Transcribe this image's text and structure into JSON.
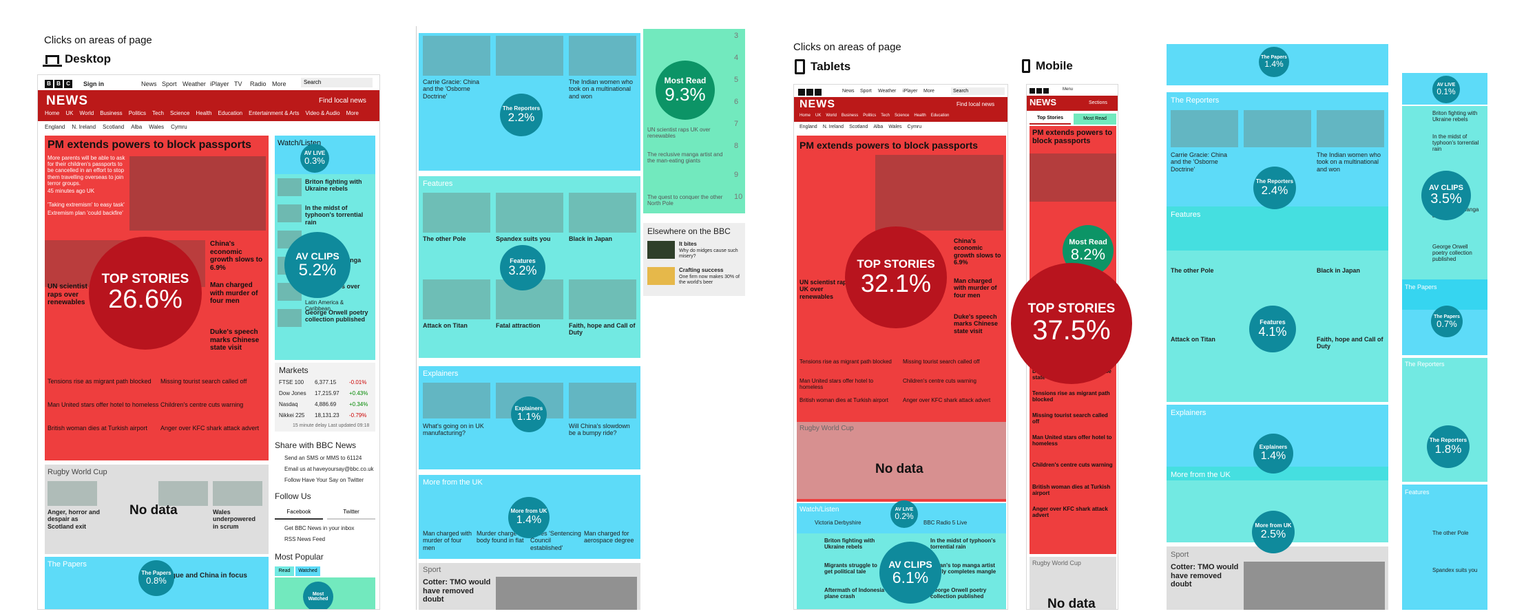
{
  "sections": {
    "clicks_left": "Clicks on areas of page",
    "clicks_right": "Clicks on areas of page",
    "desktop": "Desktop",
    "tablets": "Tablets",
    "mobile": "Mobile"
  },
  "bbc": {
    "logo": "BBC",
    "signin": "Sign in",
    "nav": [
      "News",
      "Sport",
      "Weather",
      "iPlayer",
      "TV",
      "Radio",
      "More"
    ],
    "search": "Search",
    "news": "NEWS",
    "find_local": "Find local news",
    "subnav": [
      "Home",
      "UK",
      "World",
      "Business",
      "Politics",
      "Tech",
      "Science",
      "Health",
      "Education",
      "Entertainment & Arts",
      "Video & Audio",
      "More"
    ],
    "regions": [
      "England",
      "N. Ireland",
      "Scotland",
      "Alba",
      "Wales",
      "Cymru"
    ],
    "sections_btn": "Sections",
    "menu": "Menu"
  },
  "desktop": {
    "headline": "PM extends powers to block passports",
    "headline_body": "More parents will be able to ask for their children's passports to be cancelled in an effort to stop them travelling overseas to join terror groups.",
    "headline_meta": "45 minutes ago  UK",
    "related": [
      "'Taking extremism' to easy task'",
      "Extremism plan 'could backfire'"
    ],
    "china": "China's economic growth slows to 6.9%",
    "scientist": "UN scientist raps over renewables",
    "man_charged": "Man charged with murder of four men",
    "duke": "Duke's speech marks Chinese state visit",
    "stories": [
      "Tensions rise as migrant path blocked",
      "Missing tourist search called off",
      "Man United stars offer hotel to homeless",
      "Children's centre cuts warning",
      "British woman dies at Turkish airport",
      "Anger over KFC shark attack advert"
    ],
    "watch_listen": "Watch/Listen",
    "video_items": [
      "Briton fighting with Ukraine rebels",
      "In the midst of typhoon's torrential rain",
      "Japan's top manga artist",
      "The sun rises over Bogota",
      "Latin America & Caribbean",
      "George Orwell poetry collection published"
    ],
    "markets": "Markets",
    "market_rows": [
      {
        "name": "FTSE 100",
        "value": "6,377.15",
        "change": "-0.01%"
      },
      {
        "name": "Dow Jones",
        "value": "17,215.97",
        "change": "+0.43%"
      },
      {
        "name": "Nasdaq",
        "value": "4,886.69",
        "change": "+0.34%"
      },
      {
        "name": "Nikkei 225",
        "value": "18,131.23",
        "change": "-0.79%"
      }
    ],
    "markets_footer": "15 minute delay  Last updated 09:18",
    "share": "Share with BBC News",
    "share_items": [
      "Send an SMS or MMS to 61124",
      "Email us at haveyoursay@bbc.co.uk",
      "Follow Have Your Say on Twitter"
    ],
    "follow": "Follow Us",
    "facebook": "Facebook",
    "twitter": "Twitter",
    "inbox": "Get BBC News in your inbox",
    "rss": "RSS News Feed",
    "most_popular": "Most Popular",
    "read_tab": "Read",
    "watched_tab": "Watched",
    "rugby": "Rugby World Cup",
    "rugby_items": [
      "Anger, horror and despair as Scotland exit",
      "Wales underpowered in scrum"
    ],
    "papers": "The Papers",
    "papers_head": "Intrigue and China in focus"
  },
  "bubbles": {
    "d_top": {
      "label": "TOP STORIES",
      "value": "26.6%"
    },
    "d_av_live": {
      "label": "AV LIVE",
      "value": "0.3%"
    },
    "d_av_clips": {
      "label": "AV CLIPS",
      "value": "5.2%"
    },
    "d_papers": {
      "label": "The Papers",
      "value": "0.8%"
    },
    "d_most_watched": {
      "label": "Most Watched",
      "value": ""
    },
    "m_reporters": {
      "label": "The Reporters",
      "value": "2.2%"
    },
    "m_most_read": {
      "label": "Most Read",
      "value": "9.3%"
    },
    "m_features": {
      "label": "Features",
      "value": "3.2%"
    },
    "m_explainers": {
      "label": "Explainers",
      "value": "1.1%"
    },
    "m_more_uk": {
      "label": "More from UK",
      "value": "1.4%"
    },
    "t_top": {
      "label": "TOP STORIES",
      "value": "32.1%"
    },
    "t_av_live": {
      "label": "AV LIVE",
      "value": "0.2%"
    },
    "t_av_clips": {
      "label": "AV CLIPS",
      "value": "6.1%"
    },
    "mb_most_read": {
      "label": "Most Read",
      "value": "8.2%"
    },
    "mb_top": {
      "label": "TOP STORIES",
      "value": "37.5%"
    },
    "r1_papers": {
      "label": "The Papers",
      "value": "1.4%"
    },
    "r1_reporters": {
      "label": "The Reporters",
      "value": "2.4%"
    },
    "r1_features": {
      "label": "Features",
      "value": "4.1%"
    },
    "r1_explainers": {
      "label": "Explainers",
      "value": "1.4%"
    },
    "r1_more_uk": {
      "label": "More from UK",
      "value": "2.5%"
    },
    "r2_av_live": {
      "label": "AV LIVE",
      "value": "0.1%"
    },
    "r2_av_clips": {
      "label": "AV CLIPS",
      "value": "3.5%"
    },
    "r2_papers": {
      "label": "The Papers",
      "value": "0.7%"
    },
    "r2_reporters": {
      "label": "The Reporters",
      "value": "1.8%"
    }
  },
  "no_data": "No data",
  "middle": {
    "carrie": "Carrie Gracie: China and the 'Osborne Doctrine'",
    "indian_women": "The Indian women who took on a multinational and won",
    "features": "Features",
    "other_pole": "The other Pole",
    "spandex": "Spandex suits you",
    "black_japan": "Black in Japan",
    "titan": "Attack on Titan",
    "fatal": "Fatal attraction",
    "faith": "Faith, hope and Call of Duty",
    "explainers": "Explainers",
    "explain_items": [
      "What's going on in UK manufacturing?",
      "Will China's slowdown be a bumpy ride?"
    ],
    "more_uk": "More from the UK",
    "uk_items": [
      "Man charged with murder of four men",
      "Murder charge as body found in flat",
      "Wales 'Sentencing Council established'",
      "Man charged for aerospace degree"
    ],
    "sport": "Sport",
    "sport_head": "Cotter: TMO would have removed doubt",
    "elsewhere": "Elsewhere on the BBC",
    "elsewhere_items": [
      {
        "title": "It bites",
        "sub": "Why do midges cause such misery?"
      },
      {
        "title": "Crafting success",
        "sub": "One firm now makes 30% of the world's beer"
      }
    ],
    "ranks": [
      "3",
      "4",
      "5",
      "6",
      "7",
      "8",
      "9",
      "10"
    ],
    "most_read_items": [
      "UN scientist raps UK over renewables",
      "The reclusive manga artist and the man-eating giants",
      "The quest to conquer the other North Pole"
    ]
  },
  "tablet": {
    "headline": "PM extends powers to block passports",
    "china": "China's economic growth slows to 6.9%",
    "scientist": "UN scientist raps UK over renewables",
    "man_charged": "Man charged with murder of four men",
    "duke": "Duke's speech marks Chinese state visit",
    "stories": [
      "Tensions rise as migrant path blocked",
      "Missing tourist search called off",
      "Man United stars offer hotel to homeless",
      "Children's centre cuts warning",
      "British woman dies at Turkish airport",
      "Anger over KFC shark attack advert"
    ],
    "rugby": "Rugby World Cup",
    "watch_listen": "Watch/Listen",
    "victoria": "Victoria Derbyshire",
    "radio5": "BBC Radio 5 Live",
    "video_items": [
      "Briton fighting with Ukraine rebels",
      "In the midst of typhoon's torrential rain",
      "Migrants struggle to get political tale",
      "Japan's top manga artist finally completes mangle",
      "Aftermath of Indonesia plane crash",
      "George Orwell poetry collection published"
    ]
  },
  "mobile": {
    "top_stories_tab": "Top Stories",
    "most_read_tab": "Most Read",
    "headline": "PM extends powers to block passports",
    "stories": [
      "Duke's speech marks Chinese state visit",
      "Tensions rise as migrant path blocked",
      "Missing tourist search called off",
      "Man United stars offer hotel to homeless",
      "Children's centre cuts warning",
      "British woman dies at Turkish airport",
      "Anger over KFC shark attack advert"
    ],
    "rugby": "Rugby World Cup"
  },
  "right1": {
    "reporters": "The Reporters",
    "features": "Features",
    "explainers": "Explainers",
    "more_uk": "More from the UK",
    "sport": "Sport",
    "sport_head": "Cotter: TMO would have removed doubt",
    "carrie": "Carrie Gracie: China and the 'Osborne Doctrine'",
    "indian_women": "The Indian women who took on a multinational and won",
    "other_pole": "The other Pole",
    "black_japan": "Black in Japan",
    "titan": "Attack on Titan",
    "faith": "Faith, hope and Call of Duty"
  },
  "right2": {
    "av_live": "AV LIVE",
    "items": [
      "Briton fighting with Ukraine rebels",
      "In the midst of typhoon's torrential rain",
      "Japan's top manga artist",
      "George Orwell poetry collection published"
    ],
    "papers": "The Papers",
    "reporters": "The Reporters",
    "features": "Features",
    "other_pole": "The other Pole",
    "spandex": "Spandex suits you"
  },
  "colors": {
    "top_stories": "#eb1e1e",
    "cyan": "#1ecdf5",
    "teal": "#3ce1d7",
    "green": "#3ce1a5",
    "bubble_dark": "#b8141e",
    "bubble_teal": "#0f8a9c",
    "bubble_green": "#0c9466"
  }
}
